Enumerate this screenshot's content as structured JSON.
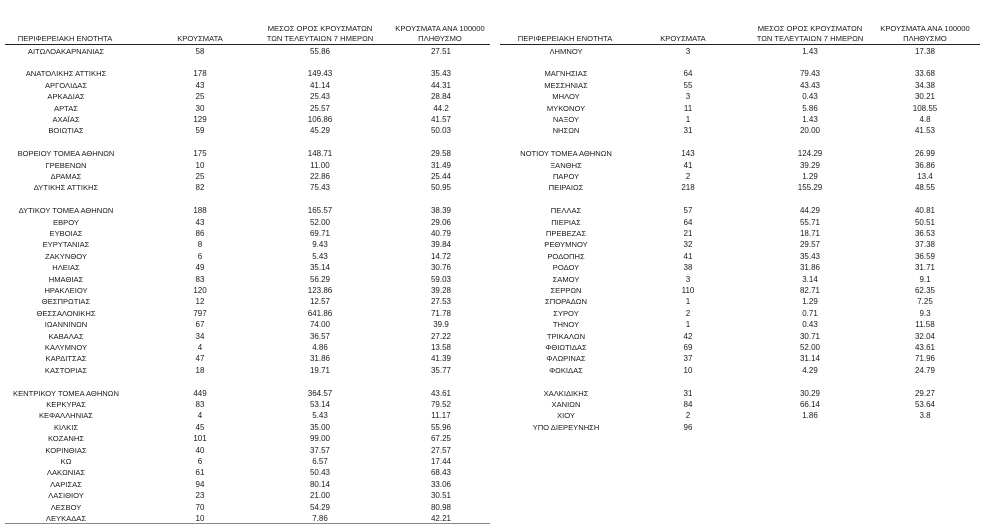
{
  "headers": {
    "region": "ΠΕΡΙΦΕΡΕΙΑΚΗ ΕΝΟΤΗΤΑ",
    "cases": "ΚΡΟΥΣΜΑΤΑ",
    "avg7_line1": "ΜΕΣΟΣ ΟΡΟΣ ΚΡΟΥΣΜΑΤΩΝ",
    "avg7_line2": "ΤΩΝ ΤΕΛΕΥΤΑΙΩΝ 7 ΗΜΕΡΩΝ",
    "per100k_line1": "ΚΡΟΥΣΜΑΤΑ ΑΝΑ 100000",
    "per100k_line2": "ΠΛΗΘΥΣΜΟ"
  },
  "left_table": [
    [
      "ΑΙΤΩΛΟΑΚΑΡΝΑΝΙΑΣ",
      "58",
      "55.86",
      "27.51"
    ],
    null,
    [
      "ΑΝΑΤΟΛΙΚΗΣ ΑΤΤΙΚΗΣ",
      "178",
      "149.43",
      "35.43"
    ],
    [
      "ΑΡΓΟΛΙΔΑΣ",
      "43",
      "41.14",
      "44.31"
    ],
    [
      "ΑΡΚΑΔΙΑΣ",
      "25",
      "25.43",
      "28.84"
    ],
    [
      "ΑΡΤΑΣ",
      "30",
      "25.57",
      "44.2"
    ],
    [
      "ΑΧΑΪΑΣ",
      "129",
      "106.86",
      "41.57"
    ],
    [
      "ΒΟΙΩΤΙΑΣ",
      "59",
      "45.29",
      "50.03"
    ],
    null,
    [
      "ΒΟΡΕΙΟΥ ΤΟΜΕΑ ΑΘΗΝΩΝ",
      "175",
      "148.71",
      "29.58"
    ],
    [
      "ΓΡΕΒΕΝΩΝ",
      "10",
      "11.00",
      "31.49"
    ],
    [
      "ΔΡΑΜΑΣ",
      "25",
      "22.86",
      "25.44"
    ],
    [
      "ΔΥΤΙΚΗΣ ΑΤΤΙΚΗΣ",
      "82",
      "75.43",
      "50.95"
    ],
    null,
    [
      "ΔΥΤΙΚΟΥ ΤΟΜΕΑ ΑΘΗΝΩΝ",
      "188",
      "165.57",
      "38.39"
    ],
    [
      "ΕΒΡΟΥ",
      "43",
      "52.00",
      "29.06"
    ],
    [
      "ΕΥΒΟΙΑΣ",
      "86",
      "69.71",
      "40.79"
    ],
    [
      "ΕΥΡΥΤΑΝΙΑΣ",
      "8",
      "9.43",
      "39.84"
    ],
    [
      "ΖΑΚΥΝΘΟΥ",
      "6",
      "5.43",
      "14.72"
    ],
    [
      "ΗΛΕΙΑΣ",
      "49",
      "35.14",
      "30.76"
    ],
    [
      "ΗΜΑΘΙΑΣ",
      "83",
      "56.29",
      "59.03"
    ],
    [
      "ΗΡΑΚΛΕΙΟΥ",
      "120",
      "123.86",
      "39.28"
    ],
    [
      "ΘΕΣΠΡΩΤΙΑΣ",
      "12",
      "12.57",
      "27.53"
    ],
    [
      "ΘΕΣΣΑΛΟΝΙΚΗΣ",
      "797",
      "641.86",
      "71.78"
    ],
    [
      "ΙΩΑΝΝΙΝΩΝ",
      "67",
      "74.00",
      "39.9"
    ],
    [
      "ΚΑΒΑΛΑΣ",
      "34",
      "36.57",
      "27.22"
    ],
    [
      "ΚΑΛΥΜΝΟΥ",
      "4",
      "4.86",
      "13.58"
    ],
    [
      "ΚΑΡΔΙΤΣΑΣ",
      "47",
      "31.86",
      "41.39"
    ],
    [
      "ΚΑΣΤΟΡΙΑΣ",
      "18",
      "19.71",
      "35.77"
    ],
    null,
    [
      "ΚΕΝΤΡΙΚΟΥ ΤΟΜΕΑ ΑΘΗΝΩΝ",
      "449",
      "364.57",
      "43.61"
    ],
    [
      "ΚΕΡΚΥΡΑΣ",
      "83",
      "53.14",
      "79.52"
    ],
    [
      "ΚΕΦΑΛΛΗΝΙΑΣ",
      "4",
      "5.43",
      "11.17"
    ],
    [
      "ΚΙΛΚΙΣ",
      "45",
      "35.00",
      "55.96"
    ],
    [
      "ΚΟΖΑΝΗΣ",
      "101",
      "99.00",
      "67.25"
    ],
    [
      "ΚΟΡΙΝΘΙΑΣ",
      "40",
      "37.57",
      "27.57"
    ],
    [
      "ΚΩ",
      "6",
      "6.57",
      "17.44"
    ],
    [
      "ΛΑΚΩΝΙΑΣ",
      "61",
      "50.43",
      "68.43"
    ],
    [
      "ΛΑΡΙΣΑΣ",
      "94",
      "80.14",
      "33.06"
    ],
    [
      "ΛΑΣΙΘΙΟΥ",
      "23",
      "21.00",
      "30.51"
    ],
    [
      "ΛΕΣΒΟΥ",
      "70",
      "54.29",
      "80.98"
    ],
    [
      "ΛΕΥΚΑΔΑΣ",
      "10",
      "7.86",
      "42.21"
    ]
  ],
  "right_table": [
    [
      "ΛΗΜΝΟΥ",
      "3",
      "1.43",
      "17.38"
    ],
    null,
    [
      "ΜΑΓΝΗΣΙΑΣ",
      "64",
      "79.43",
      "33.68"
    ],
    [
      "ΜΕΣΣΗΝΙΑΣ",
      "55",
      "43.43",
      "34.38"
    ],
    [
      "ΜΗΛΟΥ",
      "3",
      "0.43",
      "30.21"
    ],
    [
      "ΜΥΚΟΝΟΥ",
      "11",
      "5.86",
      "108.55"
    ],
    [
      "ΝΑΞΟΥ",
      "1",
      "1.43",
      "4.8"
    ],
    [
      "ΝΗΣΩΝ",
      "31",
      "20.00",
      "41.53"
    ],
    null,
    [
      "ΝΟΤΙΟΥ ΤΟΜΕΑ ΑΘΗΝΩΝ",
      "143",
      "124.29",
      "26.99"
    ],
    [
      "ΞΑΝΘΗΣ",
      "41",
      "39.29",
      "36.86"
    ],
    [
      "ΠΑΡΟΥ",
      "2",
      "1.29",
      "13.4"
    ],
    [
      "ΠΕΙΡΑΙΩΣ",
      "218",
      "155.29",
      "48.55"
    ],
    null,
    [
      "ΠΕΛΛΑΣ",
      "57",
      "44.29",
      "40.81"
    ],
    [
      "ΠΙΕΡΙΑΣ",
      "64",
      "55.71",
      "50.51"
    ],
    [
      "ΠΡΕΒΕΖΑΣ",
      "21",
      "18.71",
      "36.53"
    ],
    [
      "ΡΕΘΥΜΝΟΥ",
      "32",
      "29.57",
      "37.38"
    ],
    [
      "ΡΟΔΟΠΗΣ",
      "41",
      "35.43",
      "36.59"
    ],
    [
      "ΡΟΔΟΥ",
      "38",
      "31.86",
      "31.71"
    ],
    [
      "ΣΑΜΟΥ",
      "3",
      "3.14",
      "9.1"
    ],
    [
      "ΣΕΡΡΩΝ",
      "110",
      "82.71",
      "62.35"
    ],
    [
      "ΣΠΟΡΑΔΩΝ",
      "1",
      "1.29",
      "7.25"
    ],
    [
      "ΣΥΡΟΥ",
      "2",
      "0.71",
      "9.3"
    ],
    [
      "ΤΗΝΟΥ",
      "1",
      "0.43",
      "11.58"
    ],
    [
      "ΤΡΙΚΑΛΩΝ",
      "42",
      "30.71",
      "32.04"
    ],
    [
      "ΦΘΙΩΤΙΔΑΣ",
      "69",
      "52.00",
      "43.61"
    ],
    [
      "ΦΛΩΡΙΝΑΣ",
      "37",
      "31.14",
      "71.96"
    ],
    [
      "ΦΩΚΙΔΑΣ",
      "10",
      "4.29",
      "24.79"
    ],
    null,
    [
      "ΧΑΛΚΙΔΙΚΗΣ",
      "31",
      "30.29",
      "29.27"
    ],
    [
      "ΧΑΝΙΩΝ",
      "84",
      "66.14",
      "53.64"
    ],
    [
      "ΧΙΟΥ",
      "2",
      "1.86",
      "3.8"
    ],
    [
      "ΥΠΟ ΔΙΕΡΕΥΝΗΣΗ",
      "96",
      "",
      ""
    ]
  ]
}
